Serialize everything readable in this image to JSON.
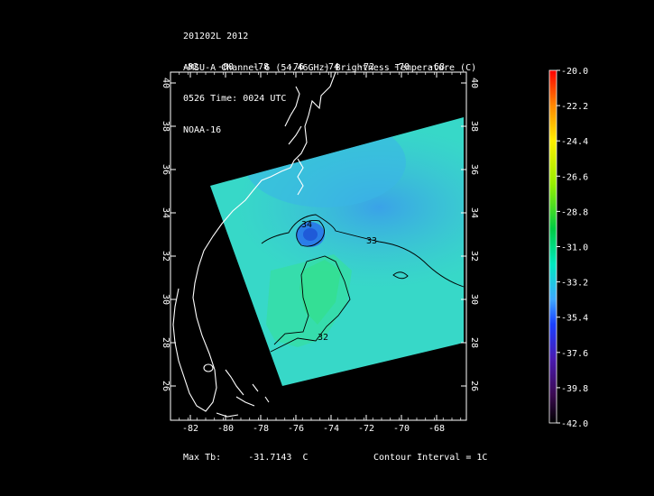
{
  "header": {
    "line1": "201202L 2012",
    "line2": "AMSU-A Channel 6 (54.46GHz) Brightness Temperature (C)",
    "line3": "0526 Time: 0024 UTC",
    "line4": "NOAA-16"
  },
  "map": {
    "lon_ticks": [
      "-82",
      "-80",
      "-78",
      "-76",
      "-74",
      "-72",
      "-70",
      "-68"
    ],
    "lat_ticks": [
      "40",
      "38",
      "36",
      "34",
      "32",
      "30",
      "28",
      "26"
    ],
    "contour_labels": [
      "34",
      "33",
      "32"
    ]
  },
  "colorbar": {
    "labels": [
      "-20.0",
      "-22.2",
      "-24.4",
      "-26.6",
      "-28.8",
      "-31.0",
      "-33.2",
      "-35.4",
      "-37.6",
      "-39.8",
      "-42.0"
    ],
    "colors": [
      "#ff0000",
      "#ff8800",
      "#ffee00",
      "#99ee00",
      "#00cc44",
      "#00e8c0",
      "#3fa8ff",
      "#1a40ff",
      "#4a1ab0",
      "#3a0a50",
      "#000000"
    ]
  },
  "footer": {
    "max_label": "Max Tb:",
    "max_value": "-31.7143",
    "max_unit": "C",
    "contour_interval": "Contour Interval = 1C"
  }
}
